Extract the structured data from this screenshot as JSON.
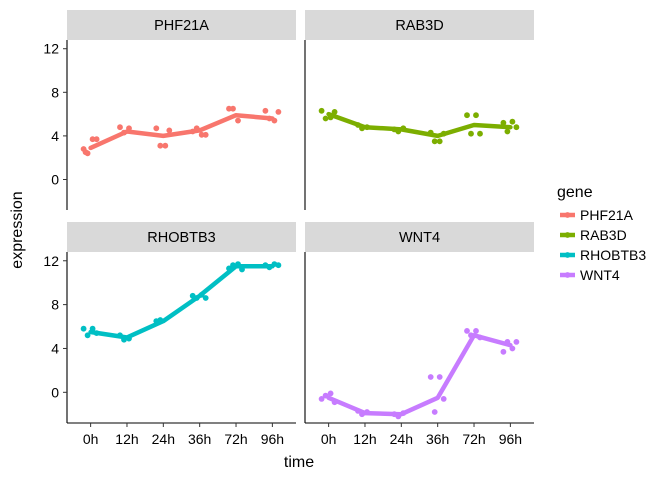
{
  "chart_data": {
    "type": "line",
    "xlabel": "time",
    "ylabel": "expression",
    "x_categories": [
      "0h",
      "12h",
      "24h",
      "36h",
      "72h",
      "96h"
    ],
    "y_ticks": [
      0,
      4,
      8,
      12
    ],
    "ylim": [
      -2.8,
      12.8
    ],
    "grid": false,
    "facets": [
      "PHF21A",
      "RAB3D",
      "RHOBTB3",
      "WNT4"
    ],
    "legend": {
      "title": "gene",
      "placement": "right",
      "entries": [
        "PHF21A",
        "RAB3D",
        "RHOBTB3",
        "WNT4"
      ]
    },
    "colors": {
      "PHF21A": "#F8766D",
      "RAB3D": "#7CAE00",
      "RHOBTB3": "#00BFC4",
      "WNT4": "#C77CFF"
    },
    "series": [
      {
        "name": "PHF21A",
        "line": [
          2.9,
          4.4,
          4.0,
          4.5,
          5.9,
          5.6
        ],
        "points": [
          [
            0,
            2.8
          ],
          [
            0,
            2.4
          ],
          [
            0,
            3.7
          ],
          [
            0,
            3.7
          ],
          [
            0,
            2.5
          ],
          [
            1,
            4.8
          ],
          [
            1,
            4.3
          ],
          [
            1,
            4.7
          ],
          [
            2,
            4.7
          ],
          [
            2,
            3.1
          ],
          [
            2,
            3.1
          ],
          [
            2,
            4.5
          ],
          [
            3,
            4.4
          ],
          [
            3,
            4.7
          ],
          [
            3,
            4.1
          ],
          [
            3,
            4.1
          ],
          [
            4,
            6.5
          ],
          [
            4,
            6.5
          ],
          [
            4,
            5.4
          ],
          [
            5,
            6.3
          ],
          [
            5,
            5.6
          ],
          [
            5,
            5.4
          ],
          [
            5,
            6.2
          ]
        ]
      },
      {
        "name": "RAB3D",
        "line": [
          6.0,
          4.8,
          4.6,
          4.0,
          5.0,
          4.8
        ],
        "points": [
          [
            0,
            6.3
          ],
          [
            0,
            5.6
          ],
          [
            0,
            5.7
          ],
          [
            0,
            6.2
          ],
          [
            1,
            5.0
          ],
          [
            1,
            4.7
          ],
          [
            1,
            4.8
          ],
          [
            2,
            4.6
          ],
          [
            2,
            4.4
          ],
          [
            2,
            4.7
          ],
          [
            3,
            4.3
          ],
          [
            3,
            3.5
          ],
          [
            3,
            3.5
          ],
          [
            3,
            4.2
          ],
          [
            4,
            5.9
          ],
          [
            4,
            4.2
          ],
          [
            4,
            5.9
          ],
          [
            4,
            4.2
          ],
          [
            5,
            5.2
          ],
          [
            5,
            4.4
          ],
          [
            5,
            5.3
          ],
          [
            5,
            4.8
          ]
        ]
      },
      {
        "name": "RHOBTB3",
        "line": [
          5.5,
          5.0,
          6.5,
          8.8,
          11.5,
          11.5
        ],
        "points": [
          [
            0,
            5.8
          ],
          [
            0,
            5.2
          ],
          [
            0,
            5.8
          ],
          [
            0,
            5.4
          ],
          [
            1,
            5.2
          ],
          [
            1,
            4.8
          ],
          [
            1,
            4.9
          ],
          [
            2,
            6.5
          ],
          [
            2,
            6.6
          ],
          [
            3,
            8.8
          ],
          [
            3,
            8.6
          ],
          [
            3,
            8.9
          ],
          [
            3,
            8.6
          ],
          [
            4,
            11.3
          ],
          [
            4,
            11.6
          ],
          [
            4,
            11.7
          ],
          [
            4,
            11.2
          ],
          [
            5,
            11.6
          ],
          [
            5,
            11.4
          ],
          [
            5,
            11.7
          ],
          [
            5,
            11.6
          ]
        ]
      },
      {
        "name": "WNT4",
        "line": [
          -0.5,
          -1.9,
          -2.0,
          -0.5,
          5.2,
          4.3
        ],
        "points": [
          [
            0,
            -0.6
          ],
          [
            0,
            -0.3
          ],
          [
            0,
            -0.1
          ],
          [
            0,
            -0.9
          ],
          [
            1,
            -1.7
          ],
          [
            1,
            -2.0
          ],
          [
            1,
            -1.8
          ],
          [
            2,
            -2.0
          ],
          [
            2,
            -2.2
          ],
          [
            2,
            -1.9
          ],
          [
            3,
            1.4
          ],
          [
            3,
            -1.8
          ],
          [
            3,
            1.4
          ],
          [
            3,
            -0.6
          ],
          [
            4,
            5.6
          ],
          [
            4,
            5.2
          ],
          [
            4,
            5.6
          ],
          [
            4,
            5.0
          ],
          [
            5,
            3.7
          ],
          [
            5,
            4.6
          ],
          [
            5,
            4.0
          ],
          [
            5,
            4.6
          ]
        ]
      }
    ]
  }
}
